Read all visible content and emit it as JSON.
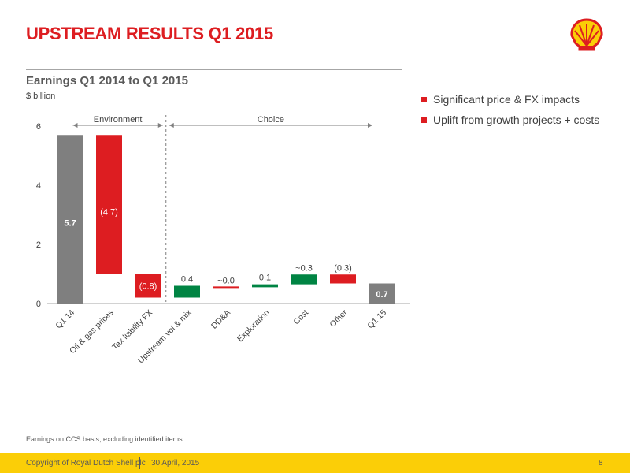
{
  "header": {
    "title": "UPSTREAM RESULTS Q1 2015"
  },
  "chart_subtitle": "Earnings Q1 2014 to Q1 2015",
  "units_label": "$ billion",
  "bullets": [
    "Significant price & FX impacts",
    "Uplift from growth projects + costs"
  ],
  "footnote": "Earnings on CCS basis, excluding identified items",
  "footer": {
    "copyright": "Copyright of Royal Dutch Shell plc",
    "date": "30  April, 2015",
    "page": "8"
  },
  "colors": {
    "total": "#7f7f7f",
    "decrease": "#dd1d21",
    "increase": "#008443",
    "accent": "#dd1d21",
    "footer": "#fbce07"
  },
  "logo": "shell-pecten-logo",
  "chart_data": {
    "type": "bar",
    "subtype": "waterfall",
    "title": "Earnings Q1 2014 to Q1 2015",
    "ylabel": "$ billion",
    "ylim": [
      0,
      6
    ],
    "yticks": [
      0,
      2,
      4,
      6
    ],
    "categories": [
      "Q1 14",
      "Oil & gas prices",
      "Tax liability FX",
      "Upstream vol & mix",
      "DD&A",
      "Exploration",
      "Cost",
      "Other",
      "Q1 15"
    ],
    "bars": [
      {
        "kind": "total",
        "start": 0,
        "end": 5.7,
        "label": "5.7"
      },
      {
        "kind": "decrease",
        "start": 5.7,
        "end": 1.0,
        "label": "(4.7)"
      },
      {
        "kind": "decrease",
        "start": 1.0,
        "end": 0.2,
        "label": "(0.8)"
      },
      {
        "kind": "increase",
        "start": 0.2,
        "end": 0.6,
        "label": "0.4"
      },
      {
        "kind": "neutral",
        "start": 0.55,
        "end": 0.55,
        "label": "~0.0"
      },
      {
        "kind": "increase",
        "start": 0.55,
        "end": 0.65,
        "label": "0.1"
      },
      {
        "kind": "increase",
        "start": 0.65,
        "end": 0.98,
        "label": "~0.3"
      },
      {
        "kind": "decrease",
        "start": 0.98,
        "end": 0.68,
        "label": "(0.3)"
      },
      {
        "kind": "total",
        "start": 0,
        "end": 0.68,
        "label": "0.7"
      }
    ],
    "groups": [
      {
        "label": "Environment",
        "from": 0,
        "to": 2
      },
      {
        "label": "Choice",
        "from": 3,
        "to": 8
      }
    ],
    "divider_after": 2
  }
}
